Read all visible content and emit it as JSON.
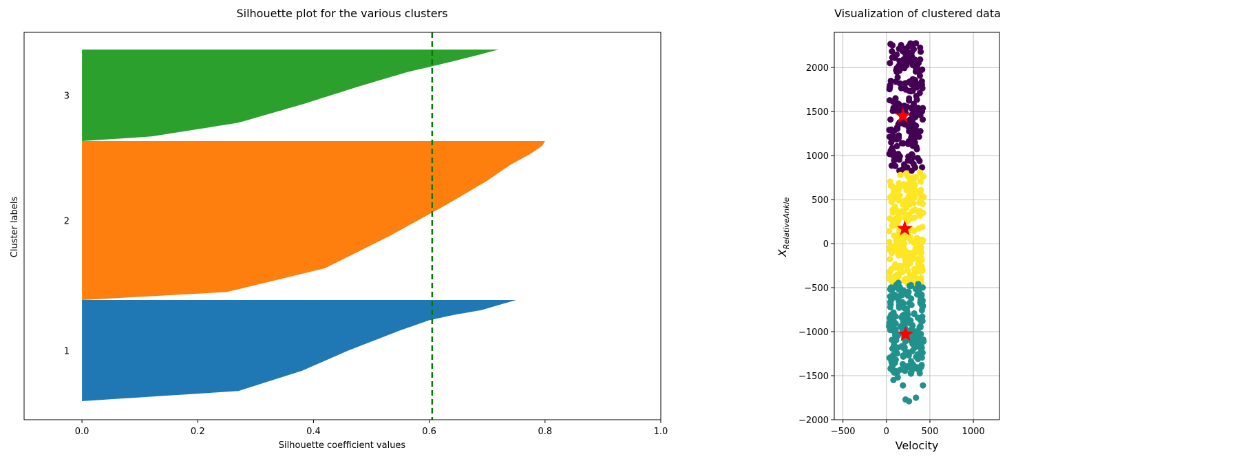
{
  "chart_data": [
    {
      "type": "area",
      "title": "Silhouette plot for the various clusters",
      "xlabel": "Silhouette coefficient values",
      "ylabel": "Cluster labels",
      "xlim": [
        -0.1,
        1.0
      ],
      "xticks": [
        "0.0",
        "0.2",
        "0.4",
        "0.6",
        "0.8",
        "1.0"
      ],
      "average_silhouette_line": 0.605,
      "average_line_color": "#008000",
      "clusters": [
        {
          "label": "1",
          "color": "#1f77b4",
          "size": 280,
          "profile": [
            [
              0,
              0.0
            ],
            [
              0.1,
              0.27
            ],
            [
              0.3,
              0.38
            ],
            [
              0.5,
              0.46
            ],
            [
              0.7,
              0.55
            ],
            [
              0.8,
              0.6
            ],
            [
              0.85,
              0.64
            ],
            [
              0.9,
              0.69
            ],
            [
              0.95,
              0.72
            ],
            [
              1.0,
              0.75
            ]
          ]
        },
        {
          "label": "2",
          "color": "#ff7f0e",
          "size": 440,
          "profile": [
            [
              0,
              0.0
            ],
            [
              0.05,
              0.25
            ],
            [
              0.2,
              0.42
            ],
            [
              0.4,
              0.53
            ],
            [
              0.6,
              0.63
            ],
            [
              0.75,
              0.7
            ],
            [
              0.85,
              0.74
            ],
            [
              0.92,
              0.775
            ],
            [
              0.97,
              0.795
            ],
            [
              1.0,
              0.8
            ]
          ]
        },
        {
          "label": "3",
          "color": "#2ca02c",
          "size": 255,
          "profile": [
            [
              0,
              0.0
            ],
            [
              0.05,
              0.12
            ],
            [
              0.2,
              0.27
            ],
            [
              0.4,
              0.38
            ],
            [
              0.6,
              0.48
            ],
            [
              0.75,
              0.56
            ],
            [
              0.87,
              0.64
            ],
            [
              0.95,
              0.69
            ],
            [
              1.0,
              0.72
            ]
          ]
        }
      ]
    },
    {
      "type": "scatter",
      "title": "Visualization of clustered data",
      "xlabel": "Velocity",
      "ylabel_base": "X",
      "ylabel_sub": "RelativeAnkle",
      "xlim": [
        -600,
        1300
      ],
      "ylim": [
        -2000,
        2400
      ],
      "xticks": [
        -500,
        0,
        500,
        1000
      ],
      "yticks": [
        -2000,
        -1500,
        -1000,
        -500,
        0,
        500,
        1000,
        1500,
        2000
      ],
      "grid": true,
      "clusters": [
        {
          "color": "#440154",
          "x_range": [
            30,
            420
          ],
          "y_range": [
            820,
            2280
          ],
          "count": 220
        },
        {
          "color": "#fde725",
          "x_range": [
            30,
            430
          ],
          "y_range": [
            -460,
            810
          ],
          "count": 240
        },
        {
          "color": "#21918c",
          "x_range": [
            30,
            430
          ],
          "y_range": [
            -1480,
            -440
          ],
          "count": 220
        }
      ],
      "outliers": [
        [
          80,
          -1550
        ],
        [
          190,
          -1610
        ],
        [
          420,
          -1610
        ],
        [
          340,
          -1750
        ],
        [
          260,
          -1790
        ],
        [
          220,
          -1770
        ],
        [
          130,
          -1520
        ]
      ],
      "centroids": [
        {
          "x": 190,
          "y": 1450
        },
        {
          "x": 210,
          "y": 170
        },
        {
          "x": 220,
          "y": -1030
        }
      ],
      "centroid_color": "#ff0000"
    }
  ]
}
